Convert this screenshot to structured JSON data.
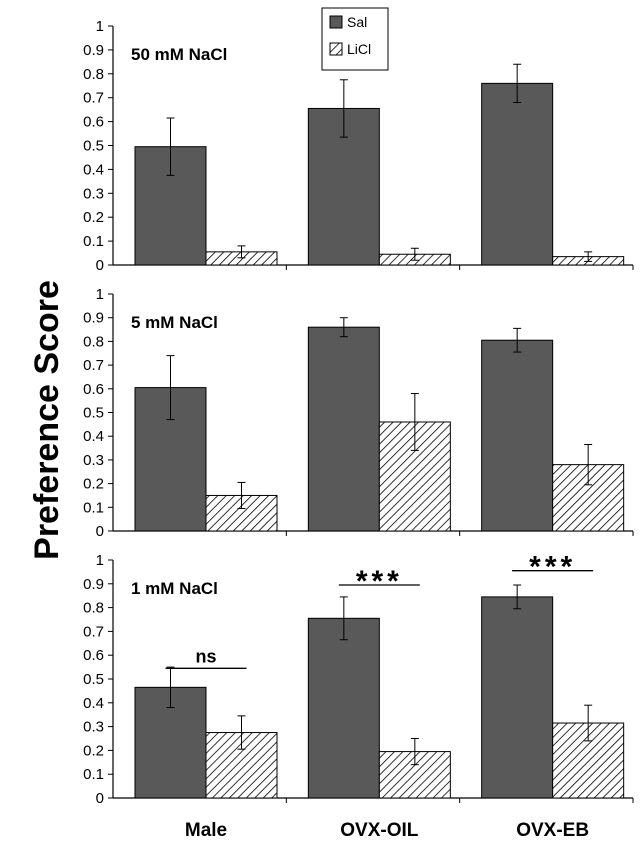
{
  "chart_data": {
    "type": "bar",
    "ylabel": "Preference Score",
    "categories": [
      "Male",
      "OVX-OIL",
      "OVX-EB"
    ],
    "legend": [
      {
        "name": "Sal",
        "fill": "#595959"
      },
      {
        "name": "LiCl",
        "fill": "hatch"
      }
    ],
    "ylim": [
      0,
      1
    ],
    "yticks": [
      "0",
      "0.1",
      "0.2",
      "0.3",
      "0.4",
      "0.5",
      "0.6",
      "0.7",
      "0.8",
      "0.9",
      "1"
    ],
    "panels": [
      {
        "title": "50 mM NaCl",
        "series": [
          {
            "name": "Sal",
            "values": [
              0.495,
              0.655,
              0.76
            ],
            "errors": [
              0.12,
              0.12,
              0.08
            ]
          },
          {
            "name": "LiCl",
            "values": [
              0.055,
              0.045,
              0.035
            ],
            "errors": [
              0.025,
              0.025,
              0.02
            ]
          }
        ],
        "annotations": []
      },
      {
        "title": "5 mM NaCl",
        "series": [
          {
            "name": "Sal",
            "values": [
              0.605,
              0.86,
              0.805
            ],
            "errors": [
              0.135,
              0.04,
              0.05
            ]
          },
          {
            "name": "LiCl",
            "values": [
              0.15,
              0.46,
              0.28
            ],
            "errors": [
              0.055,
              0.12,
              0.085
            ]
          }
        ],
        "annotations": []
      },
      {
        "title": "1 mM NaCl",
        "series": [
          {
            "name": "Sal",
            "values": [
              0.465,
              0.755,
              0.845
            ],
            "errors": [
              0.085,
              0.09,
              0.05
            ]
          },
          {
            "name": "LiCl",
            "values": [
              0.275,
              0.195,
              0.315
            ],
            "errors": [
              0.07,
              0.055,
              0.075
            ]
          }
        ],
        "annotations": [
          {
            "category": "Male",
            "label": "ns",
            "y": 0.545
          },
          {
            "category": "OVX-OIL",
            "label": "***",
            "y": 0.895
          },
          {
            "category": "OVX-EB",
            "label": "***",
            "y": 0.955
          }
        ]
      }
    ],
    "colors": {
      "sal": "#595959",
      "axis": "#000000",
      "bar_stroke": "#000000"
    }
  }
}
